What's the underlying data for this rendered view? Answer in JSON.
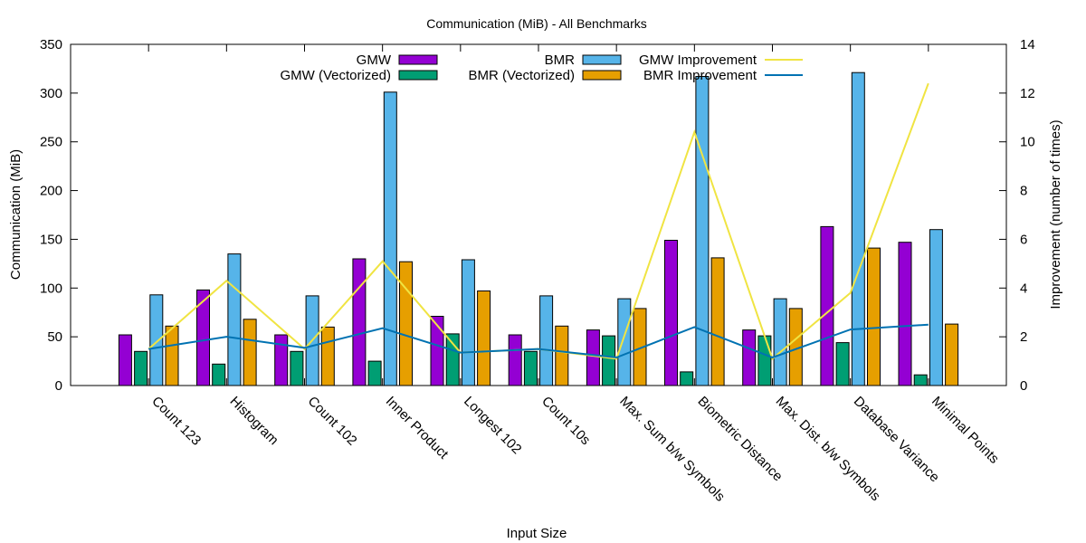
{
  "chart_data": {
    "type": "bar",
    "title": "Communication (MiB) - All Benchmarks",
    "xlabel": "Input Size",
    "ylabel": "Communication (MiB)",
    "y2label": "Improvement (number of times)",
    "ylim": [
      0,
      350
    ],
    "y2lim": [
      0,
      14
    ],
    "yticks": [
      0,
      50,
      100,
      150,
      200,
      250,
      300,
      350
    ],
    "y2ticks": [
      0,
      2,
      4,
      6,
      8,
      10,
      12,
      14
    ],
    "grid": false,
    "legend_position": "top",
    "categories": [
      "Count 123",
      "Histogram",
      "Count 102",
      "Inner Product",
      "Longest 102",
      "Count 10s",
      "Max. Sum b/w Symbols",
      "Biometric Distance",
      "Max. Dist. b/w Symbols",
      "Database Variance",
      "Minimal Points"
    ],
    "series": [
      {
        "name": "GMW",
        "axis": "y",
        "kind": "bar",
        "color": "#9400d3",
        "values": [
          52,
          98,
          52,
          130,
          71,
          52,
          57,
          149,
          57,
          163,
          147
        ]
      },
      {
        "name": "GMW (Vectorized)",
        "axis": "y",
        "kind": "bar",
        "color": "#009e73",
        "values": [
          35,
          22,
          35,
          25,
          53,
          35,
          51,
          14,
          51,
          44,
          11
        ]
      },
      {
        "name": "BMR",
        "axis": "y",
        "kind": "bar",
        "color": "#56b4e9",
        "values": [
          93,
          135,
          92,
          301,
          129,
          92,
          89,
          317,
          89,
          321,
          160
        ]
      },
      {
        "name": "BMR (Vectorized)",
        "axis": "y",
        "kind": "bar",
        "color": "#e69f00",
        "values": [
          61,
          68,
          60,
          127,
          97,
          61,
          79,
          131,
          79,
          141,
          63
        ]
      },
      {
        "name": "GMW Improvement",
        "axis": "y2",
        "kind": "line",
        "color": "#f0e442",
        "values": [
          1.5,
          4.3,
          1.5,
          5.1,
          1.35,
          1.5,
          1.1,
          10.4,
          1.1,
          3.8,
          12.4
        ]
      },
      {
        "name": "BMR Improvement",
        "axis": "y2",
        "kind": "line",
        "color": "#0072b2",
        "values": [
          1.5,
          2.0,
          1.55,
          2.35,
          1.35,
          1.5,
          1.15,
          2.4,
          1.15,
          2.3,
          2.5
        ]
      }
    ]
  }
}
